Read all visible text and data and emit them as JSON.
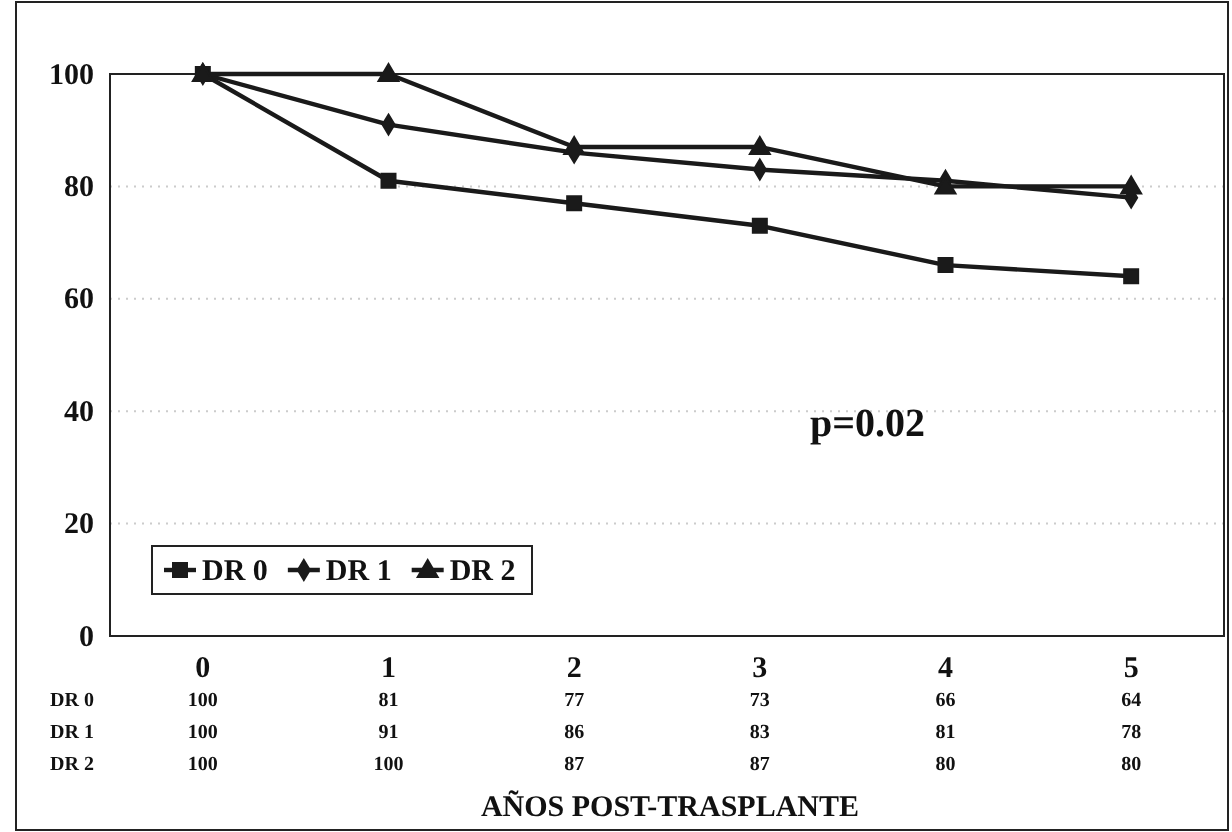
{
  "chart_data": {
    "type": "line",
    "xlabel": "AÑOS POST-TRASPLANTE",
    "categories": [
      "0",
      "1",
      "2",
      "3",
      "4",
      "5"
    ],
    "series": [
      {
        "name": "DR 0",
        "color": "#1a1a1a",
        "marker": "square",
        "values": [
          100,
          81,
          77,
          73,
          66,
          64
        ]
      },
      {
        "name": "DR 1",
        "color": "#1a1a1a",
        "marker": "diamond",
        "values": [
          100,
          91,
          86,
          83,
          81,
          78
        ]
      },
      {
        "name": "DR 2",
        "color": "#1a1a1a",
        "marker": "triangle",
        "values": [
          100,
          100,
          87,
          87,
          80,
          80
        ]
      }
    ],
    "ylim": [
      0,
      100
    ],
    "yticks": [
      0,
      20,
      40,
      60,
      80,
      100
    ],
    "grid": "y",
    "legend": "bottom left",
    "data_labels": true,
    "line_style": "solid",
    "annotations": [
      "p=0.02"
    ]
  }
}
